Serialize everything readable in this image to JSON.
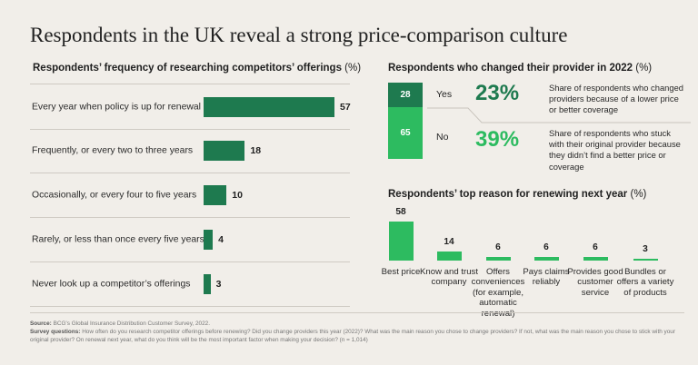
{
  "title": "Respondents in the UK reveal a strong price-comparison culture",
  "colors": {
    "dark_green": "#1e7a4f",
    "mid_green": "#2a9d5e",
    "bright_green": "#2dbb60",
    "bg": "#f1eee9"
  },
  "chart_data": [
    {
      "type": "bar",
      "orientation": "horizontal",
      "title": "Respondents’ frequency of researching competitors’ offerings",
      "unit": "(%)",
      "categories": [
        "Every year when policy is up for renewal",
        "Frequently, or every two to three years",
        "Occasionally, or every four to five years",
        "Rarely, or less than once every five years",
        "Never look up a competitor’s offerings"
      ],
      "values": [
        57,
        18,
        10,
        4,
        3
      ],
      "xlim": [
        0,
        57
      ]
    },
    {
      "type": "bar",
      "orientation": "stacked",
      "title": "Respondents who changed their provider in 2022",
      "unit": "(%)",
      "categories": [
        "Yes",
        "No"
      ],
      "values": [
        28,
        65
      ],
      "highlights": [
        {
          "value": "23%",
          "text": "Share of respondents who changed providers because of a lower price or better coverage"
        },
        {
          "value": "39%",
          "text": "Share of respondents who stuck with their original provider because they didn’t find a better price or coverage"
        }
      ]
    },
    {
      "type": "bar",
      "orientation": "vertical",
      "title": "Respondents’ top reason for renewing next year",
      "unit": "(%)",
      "categories": [
        "Best price",
        "Know and trust company",
        "Offers conveniences (for example, automatic renewal)",
        "Pays claims reliably",
        "Provides good customer service",
        "Bundles or offers a variety of products"
      ],
      "values": [
        58,
        14,
        6,
        6,
        6,
        3
      ],
      "ylim": [
        0,
        58
      ]
    }
  ],
  "footer": {
    "source_label": "Source:",
    "source_text": "BCG’s Global Insurance Distribution Customer Survey, 2022.",
    "questions_label": "Survey questions:",
    "questions_text": "How often do you research competitor offerings before renewing? Did you change providers this year (2022)? What was the main reason you chose to change providers? If not, what was the main reason you chose to stick with your original provider? On renewal next year, what do you think will be the most important factor when making your decision? (n = 1,014)"
  }
}
